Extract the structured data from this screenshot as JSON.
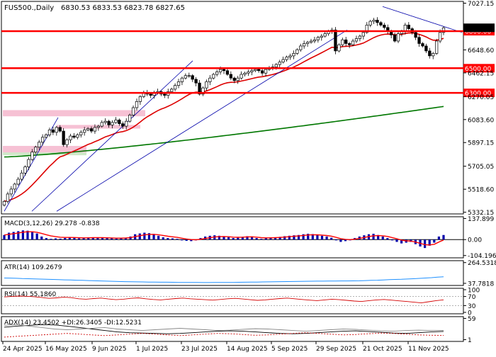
{
  "header": {
    "symbol_label": "FUS500.,Daily",
    "ohlc_label": "6830.53 6833.53 6823.78 6827.65"
  },
  "colors": {
    "background": "#ffffff",
    "border": "#000000",
    "bull_candle": "#000000",
    "bear_candle": "#000000",
    "hline": "#ff0000",
    "ema_fast": "#dd0000",
    "ema_slow": "#007700",
    "trendline": "#0000aa",
    "zone_pink": "#f4b6cc",
    "zone_green": "#cfe8c8",
    "macd_hist": "#0000aa",
    "macd_signal": "#ff0000",
    "atr": "#1e90ff",
    "rsi": "#d40000",
    "adx": "#000000",
    "di_plus": "#888888",
    "di_minus": "#cc0000",
    "label_bg": "#ff0000",
    "label_text": "#ffffff"
  },
  "chart_data": [
    {
      "type": "candlestick",
      "title": "FUS500.,Daily",
      "ylim": [
        5330,
        7030
      ],
      "y_ticks": [
        "7027.15",
        "6838.60",
        "6648.60",
        "6462.15",
        "6270.05",
        "6083.60",
        "5897.15",
        "5705.05",
        "5518.60",
        "5332.15"
      ],
      "x_ticks": [
        "24 Apr 2025",
        "16 May 2025",
        "9 Jun 2025",
        "1 Jul 2025",
        "23 Jul 2025",
        "14 Aug 2025",
        "5 Sep 2025",
        "29 Sep 2025",
        "21 Oct 2025",
        "11 Nov 2025"
      ],
      "last_close": 6827.65,
      "horizontal_levels": [
        {
          "value": 6800,
          "label": "6800.00"
        },
        {
          "value": 6500,
          "label": "6500.00"
        },
        {
          "value": 6300,
          "label": "6300.00"
        }
      ],
      "closes": [
        5420,
        5480,
        5520,
        5560,
        5600,
        5650,
        5700,
        5760,
        5820,
        5860,
        5900,
        5940,
        5960,
        6000,
        5980,
        6020,
        5990,
        5880,
        5920,
        5950,
        5940,
        5960,
        5980,
        6000,
        6010,
        5990,
        6020,
        6030,
        6060,
        6070,
        6040,
        6060,
        6080,
        6050,
        6030,
        6070,
        6120,
        6180,
        6230,
        6270,
        6300,
        6290,
        6280,
        6300,
        6310,
        6290,
        6280,
        6310,
        6330,
        6360,
        6390,
        6420,
        6440,
        6440,
        6410,
        6380,
        6290,
        6340,
        6390,
        6420,
        6450,
        6470,
        6490,
        6480,
        6450,
        6420,
        6400,
        6420,
        6450,
        6460,
        6470,
        6480,
        6490,
        6480,
        6460,
        6490,
        6500,
        6510,
        6530,
        6550,
        6570,
        6590,
        6600,
        6620,
        6650,
        6680,
        6700,
        6710,
        6720,
        6730,
        6750,
        6760,
        6780,
        6800,
        6810,
        6640,
        6690,
        6730,
        6700,
        6690,
        6720,
        6740,
        6760,
        6790,
        6850,
        6880,
        6890,
        6870,
        6850,
        6830,
        6800,
        6770,
        6720,
        6780,
        6800,
        6850,
        6820,
        6790,
        6750,
        6700,
        6680,
        6640,
        6600,
        6620,
        6720,
        6790,
        6827.65
      ],
      "series": [
        {
          "name": "EMA fast",
          "values": []
        },
        {
          "name": "EMA slow",
          "values": []
        }
      ],
      "zones": [
        {
          "y_top": 6160,
          "y_bottom": 6110,
          "color": "pink"
        },
        {
          "y_top": 6040,
          "y_bottom": 6010,
          "color": "pink"
        },
        {
          "y_top": 5870,
          "y_bottom": 5800,
          "color": "pink_green"
        }
      ]
    },
    {
      "type": "bar",
      "title": "MACD(3,12,26) 29.278 -0.838",
      "ylim": [
        -110,
        140
      ],
      "y_ticks": [
        "137.899",
        "0.00",
        "-104.196"
      ],
      "series": [
        {
          "name": "histogram",
          "values": [
            30,
            45,
            50,
            55,
            60,
            58,
            52,
            40,
            20,
            10,
            5,
            8,
            6,
            10,
            15,
            12,
            8,
            10,
            12,
            15,
            14,
            12,
            10,
            8,
            6,
            10,
            12,
            20,
            35,
            40,
            45,
            42,
            35,
            25,
            15,
            10,
            8,
            5,
            -5,
            -8,
            -10,
            -5,
            10,
            20,
            25,
            28,
            25,
            22,
            15,
            10,
            12,
            18,
            22,
            20,
            10,
            5,
            8,
            12,
            15,
            18,
            22,
            25,
            28,
            30,
            35,
            38,
            36,
            30,
            25,
            20,
            12,
            -5,
            -15,
            -10,
            -5,
            10,
            20,
            28,
            35,
            38,
            30,
            20,
            10,
            -5,
            -15,
            -25,
            -20,
            -15,
            -30,
            -45,
            -55,
            -40,
            -20,
            20,
            30
          ]
        },
        {
          "name": "signal",
          "values": []
        }
      ]
    },
    {
      "type": "line",
      "title": "ATR(14) 109.2679",
      "ylim": [
        30,
        270
      ],
      "y_ticks": [
        "264.5318",
        "37.7818"
      ],
      "values": [
        96,
        95,
        93,
        90,
        88,
        86,
        84,
        82,
        80,
        78,
        76,
        74,
        72,
        70,
        68,
        66,
        64,
        62,
        60,
        58,
        56,
        55,
        54,
        53,
        52,
        51,
        50,
        50,
        49,
        48,
        48,
        47,
        47,
        46,
        46,
        47,
        47,
        48,
        48,
        49,
        50,
        51,
        52,
        53,
        54,
        55,
        56,
        57,
        58,
        59,
        60,
        61,
        62,
        62,
        63,
        63,
        64,
        64,
        65,
        66,
        68,
        70,
        72,
        75,
        78,
        80,
        82,
        85,
        88,
        92,
        96,
        100,
        105,
        109.27
      ]
    },
    {
      "type": "line",
      "title": "RSI(14) 55.1860",
      "ylim": [
        0,
        100
      ],
      "y_ticks": [
        "100",
        "70",
        "30",
        "0"
      ],
      "values": [
        68,
        70,
        72,
        71,
        69,
        66,
        62,
        64,
        67,
        65,
        60,
        58,
        61,
        63,
        59,
        56,
        58,
        62,
        64,
        60,
        57,
        55,
        58,
        61,
        63,
        60,
        58,
        56,
        54,
        57,
        60,
        62,
        59,
        56,
        53,
        55,
        58,
        61,
        63,
        60,
        57,
        54,
        52,
        55,
        58,
        56,
        53,
        50,
        48,
        52,
        55,
        57,
        54,
        51,
        48,
        45,
        42,
        47,
        52,
        55.19
      ]
    },
    {
      "type": "line",
      "title": "ADX(14) 23.4502 +DI:26.3405 -DI:12.5231",
      "ylim": [
        0,
        60
      ],
      "y_ticks": [
        "59",
        "1"
      ],
      "series": [
        {
          "name": "ADX",
          "values": [
            35,
            38,
            40,
            42,
            41,
            38,
            34,
            30,
            26,
            22,
            20,
            19,
            18,
            17,
            18,
            20,
            22,
            24,
            25,
            24,
            22,
            20,
            18,
            17,
            18,
            20,
            22,
            24,
            25,
            23,
            21,
            19,
            18,
            20,
            22,
            23.45
          ]
        },
        {
          "name": "+DI",
          "values": [
            40,
            42,
            38,
            34,
            30,
            28,
            30,
            32,
            34,
            30,
            28,
            26,
            28,
            30,
            32,
            30,
            28,
            26,
            27,
            29,
            31,
            30,
            28,
            26,
            24,
            26,
            28,
            30,
            29,
            27,
            25,
            24,
            26,
            27,
            26,
            26.34
          ]
        },
        {
          "name": "-DI",
          "values": [
            8,
            10,
            12,
            14,
            16,
            18,
            16,
            14,
            12,
            14,
            16,
            18,
            16,
            14,
            12,
            14,
            16,
            18,
            17,
            15,
            13,
            14,
            16,
            18,
            20,
            18,
            16,
            14,
            15,
            17,
            19,
            18,
            16,
            14,
            13,
            12.52
          ]
        }
      ]
    }
  ]
}
